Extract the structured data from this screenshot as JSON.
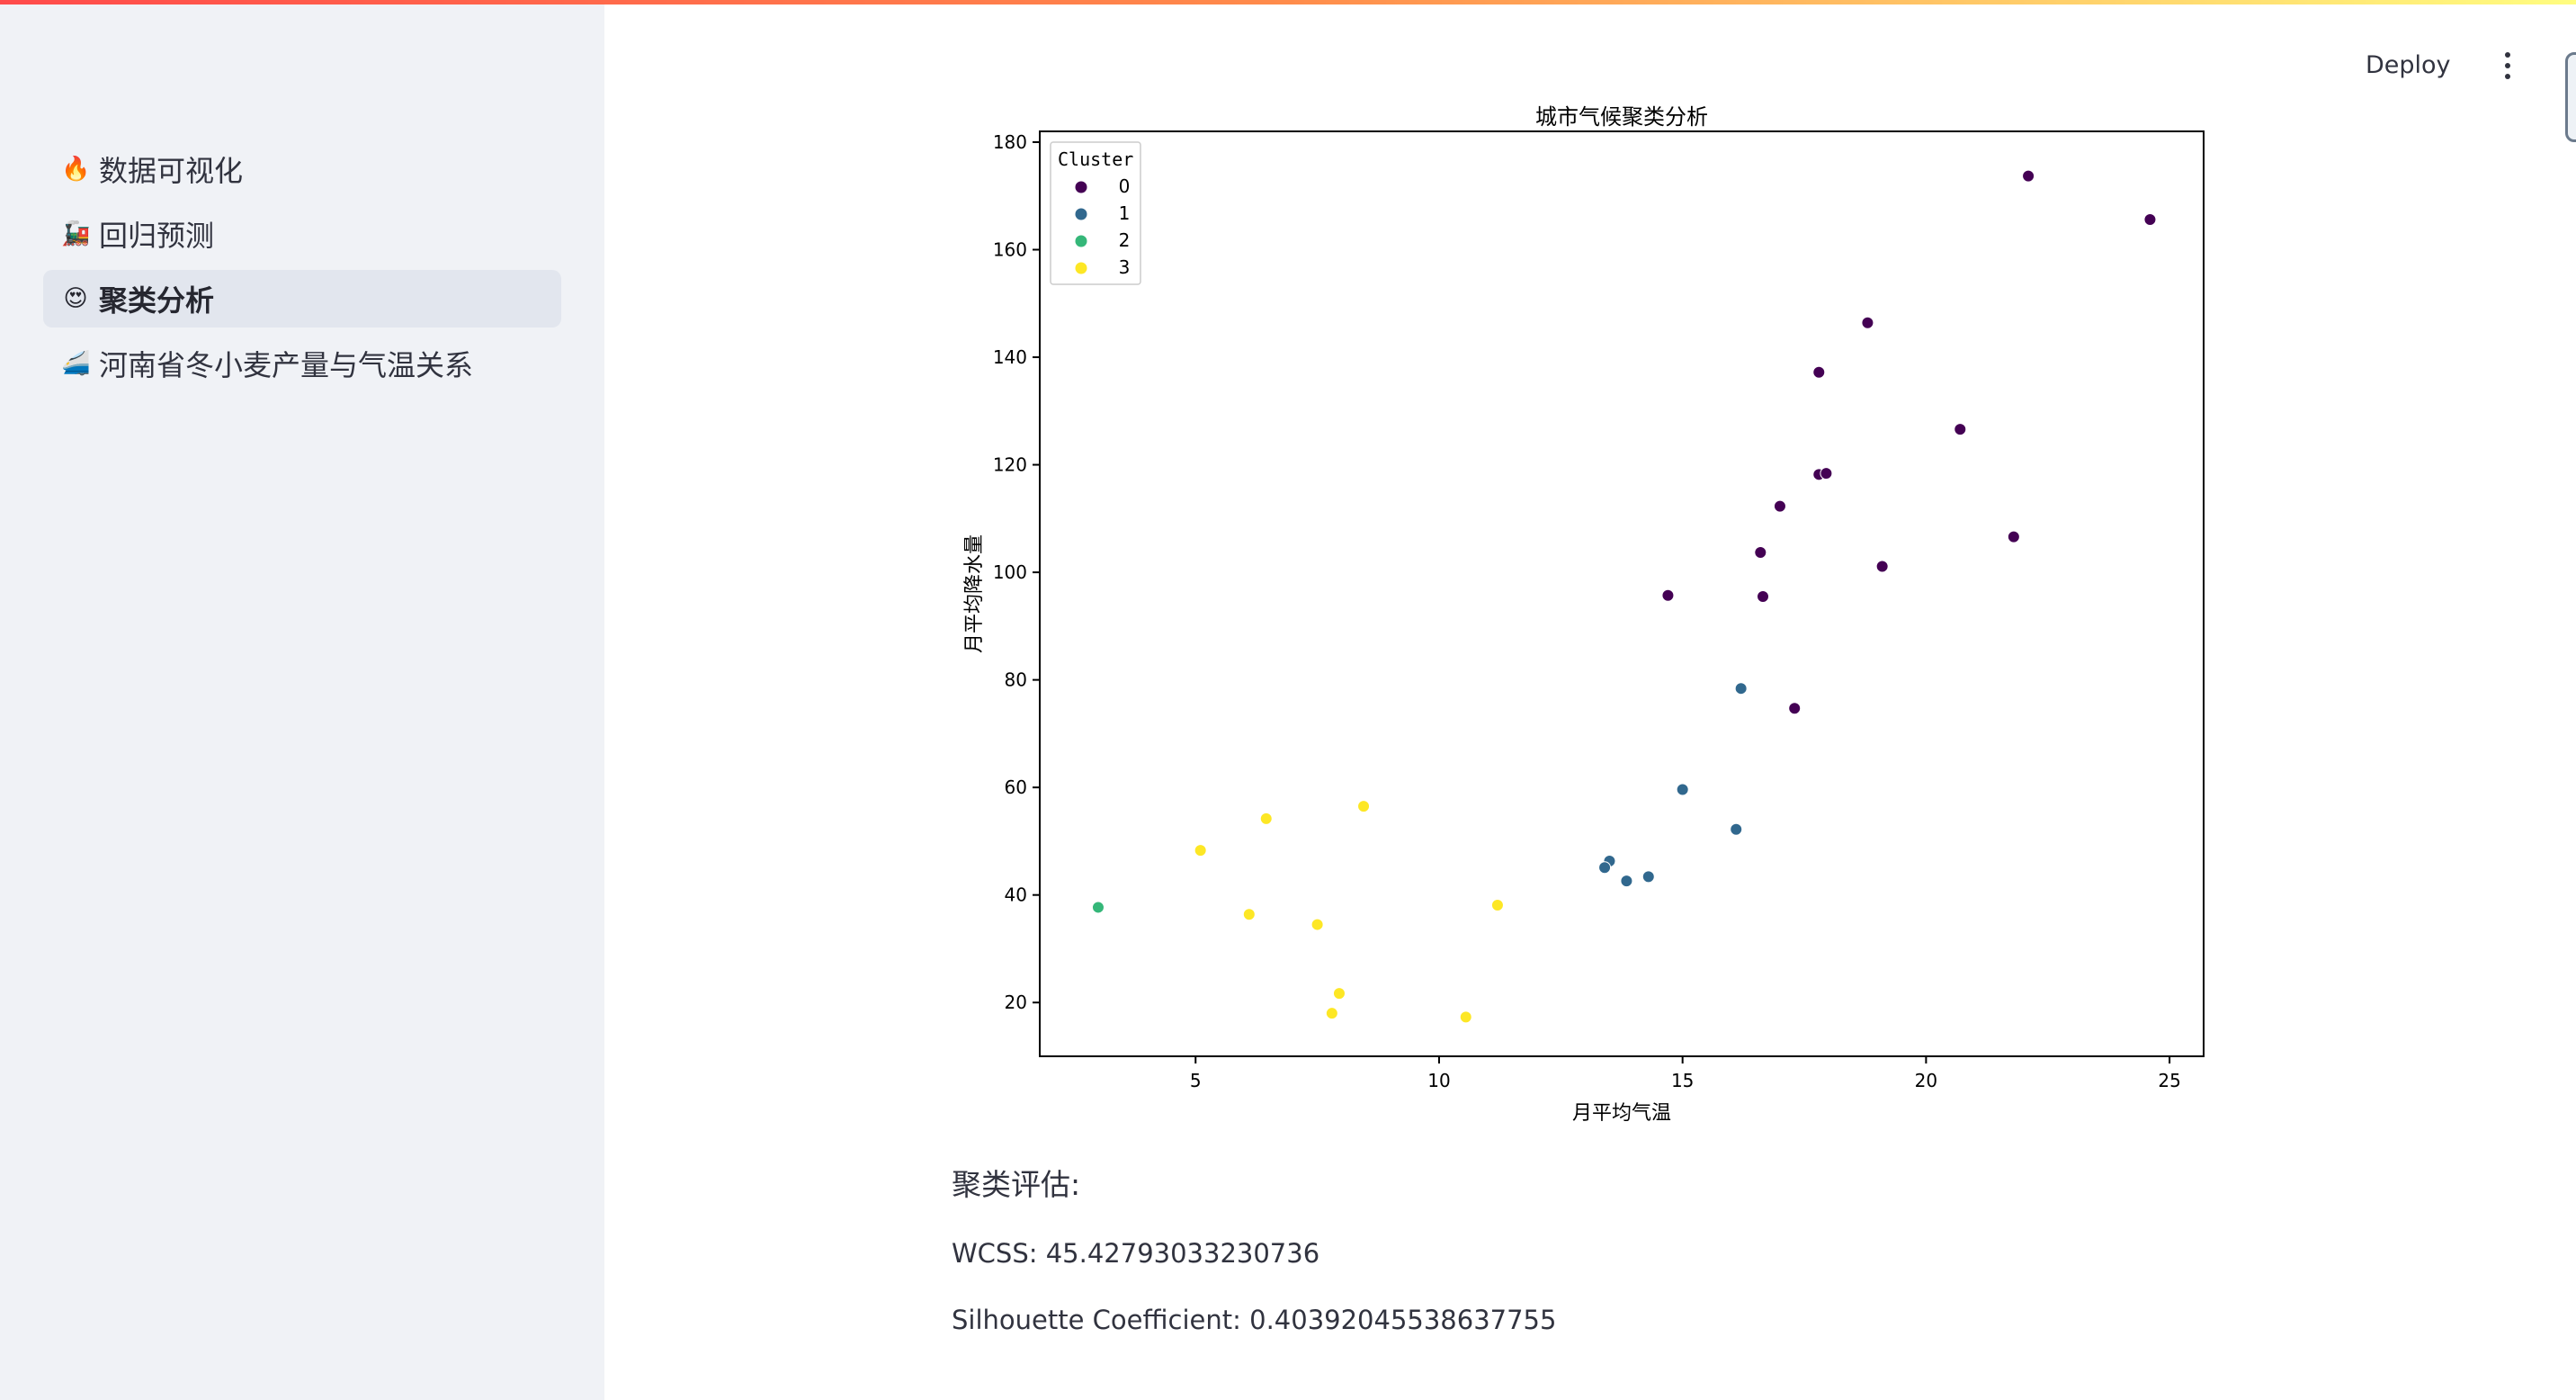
{
  "header": {
    "deploy_label": "Deploy",
    "menu_icon": "more-vertical-icon"
  },
  "sidebar": {
    "items": [
      {
        "emoji": "🔥",
        "label": "数据可视化",
        "active": false
      },
      {
        "emoji": "🚂",
        "label": "回归预测",
        "active": false
      },
      {
        "emoji": "😍",
        "label": "聚类分析",
        "active": true
      },
      {
        "emoji": "🚄",
        "label": "河南省冬小麦产量与气温关系",
        "active": false
      }
    ]
  },
  "results": {
    "heading": "聚类评估:",
    "wcss": "WCSS: 45.42793033230736",
    "silhouette": "Silhouette Coefficient: 0.40392045538637755"
  },
  "chart_data": {
    "type": "scatter",
    "title": "城市气候聚类分析",
    "xlabel": "月平均气温",
    "ylabel": "月平均降水量",
    "xlim": [
      1.8,
      25.7
    ],
    "ylim": [
      10,
      182
    ],
    "xticks": [
      5,
      10,
      15,
      20,
      25
    ],
    "yticks": [
      20,
      40,
      60,
      80,
      100,
      120,
      140,
      160,
      180
    ],
    "grid": false,
    "legend": {
      "title": "Cluster",
      "placement": "top-left"
    },
    "series": [
      {
        "name": "0",
        "color": "#440154",
        "points": [
          [
            22.1,
            173.7
          ],
          [
            24.6,
            165.6
          ],
          [
            18.8,
            146.4
          ],
          [
            17.8,
            137.2
          ],
          [
            20.7,
            126.6
          ],
          [
            17.8,
            118.2
          ],
          [
            17.95,
            118.4
          ],
          [
            17.0,
            112.3
          ],
          [
            21.8,
            106.6
          ],
          [
            16.6,
            103.7
          ],
          [
            19.1,
            101.1
          ],
          [
            14.7,
            95.7
          ],
          [
            16.65,
            95.5
          ],
          [
            17.3,
            74.7
          ]
        ]
      },
      {
        "name": "1",
        "color": "#31688e",
        "points": [
          [
            16.2,
            78.4
          ],
          [
            15.0,
            59.6
          ],
          [
            16.1,
            52.2
          ],
          [
            13.5,
            46.3
          ],
          [
            13.4,
            45.1
          ],
          [
            14.3,
            43.4
          ],
          [
            13.85,
            42.6
          ]
        ]
      },
      {
        "name": "2",
        "color": "#35b779",
        "points": [
          [
            3.0,
            37.7
          ]
        ]
      },
      {
        "name": "3",
        "color": "#fde725",
        "points": [
          [
            5.1,
            48.3
          ],
          [
            6.45,
            54.2
          ],
          [
            8.45,
            56.5
          ],
          [
            6.1,
            36.4
          ],
          [
            7.5,
            34.5
          ],
          [
            11.2,
            38.1
          ],
          [
            7.95,
            21.7
          ],
          [
            7.8,
            18.0
          ],
          [
            10.55,
            17.3
          ]
        ]
      }
    ]
  }
}
